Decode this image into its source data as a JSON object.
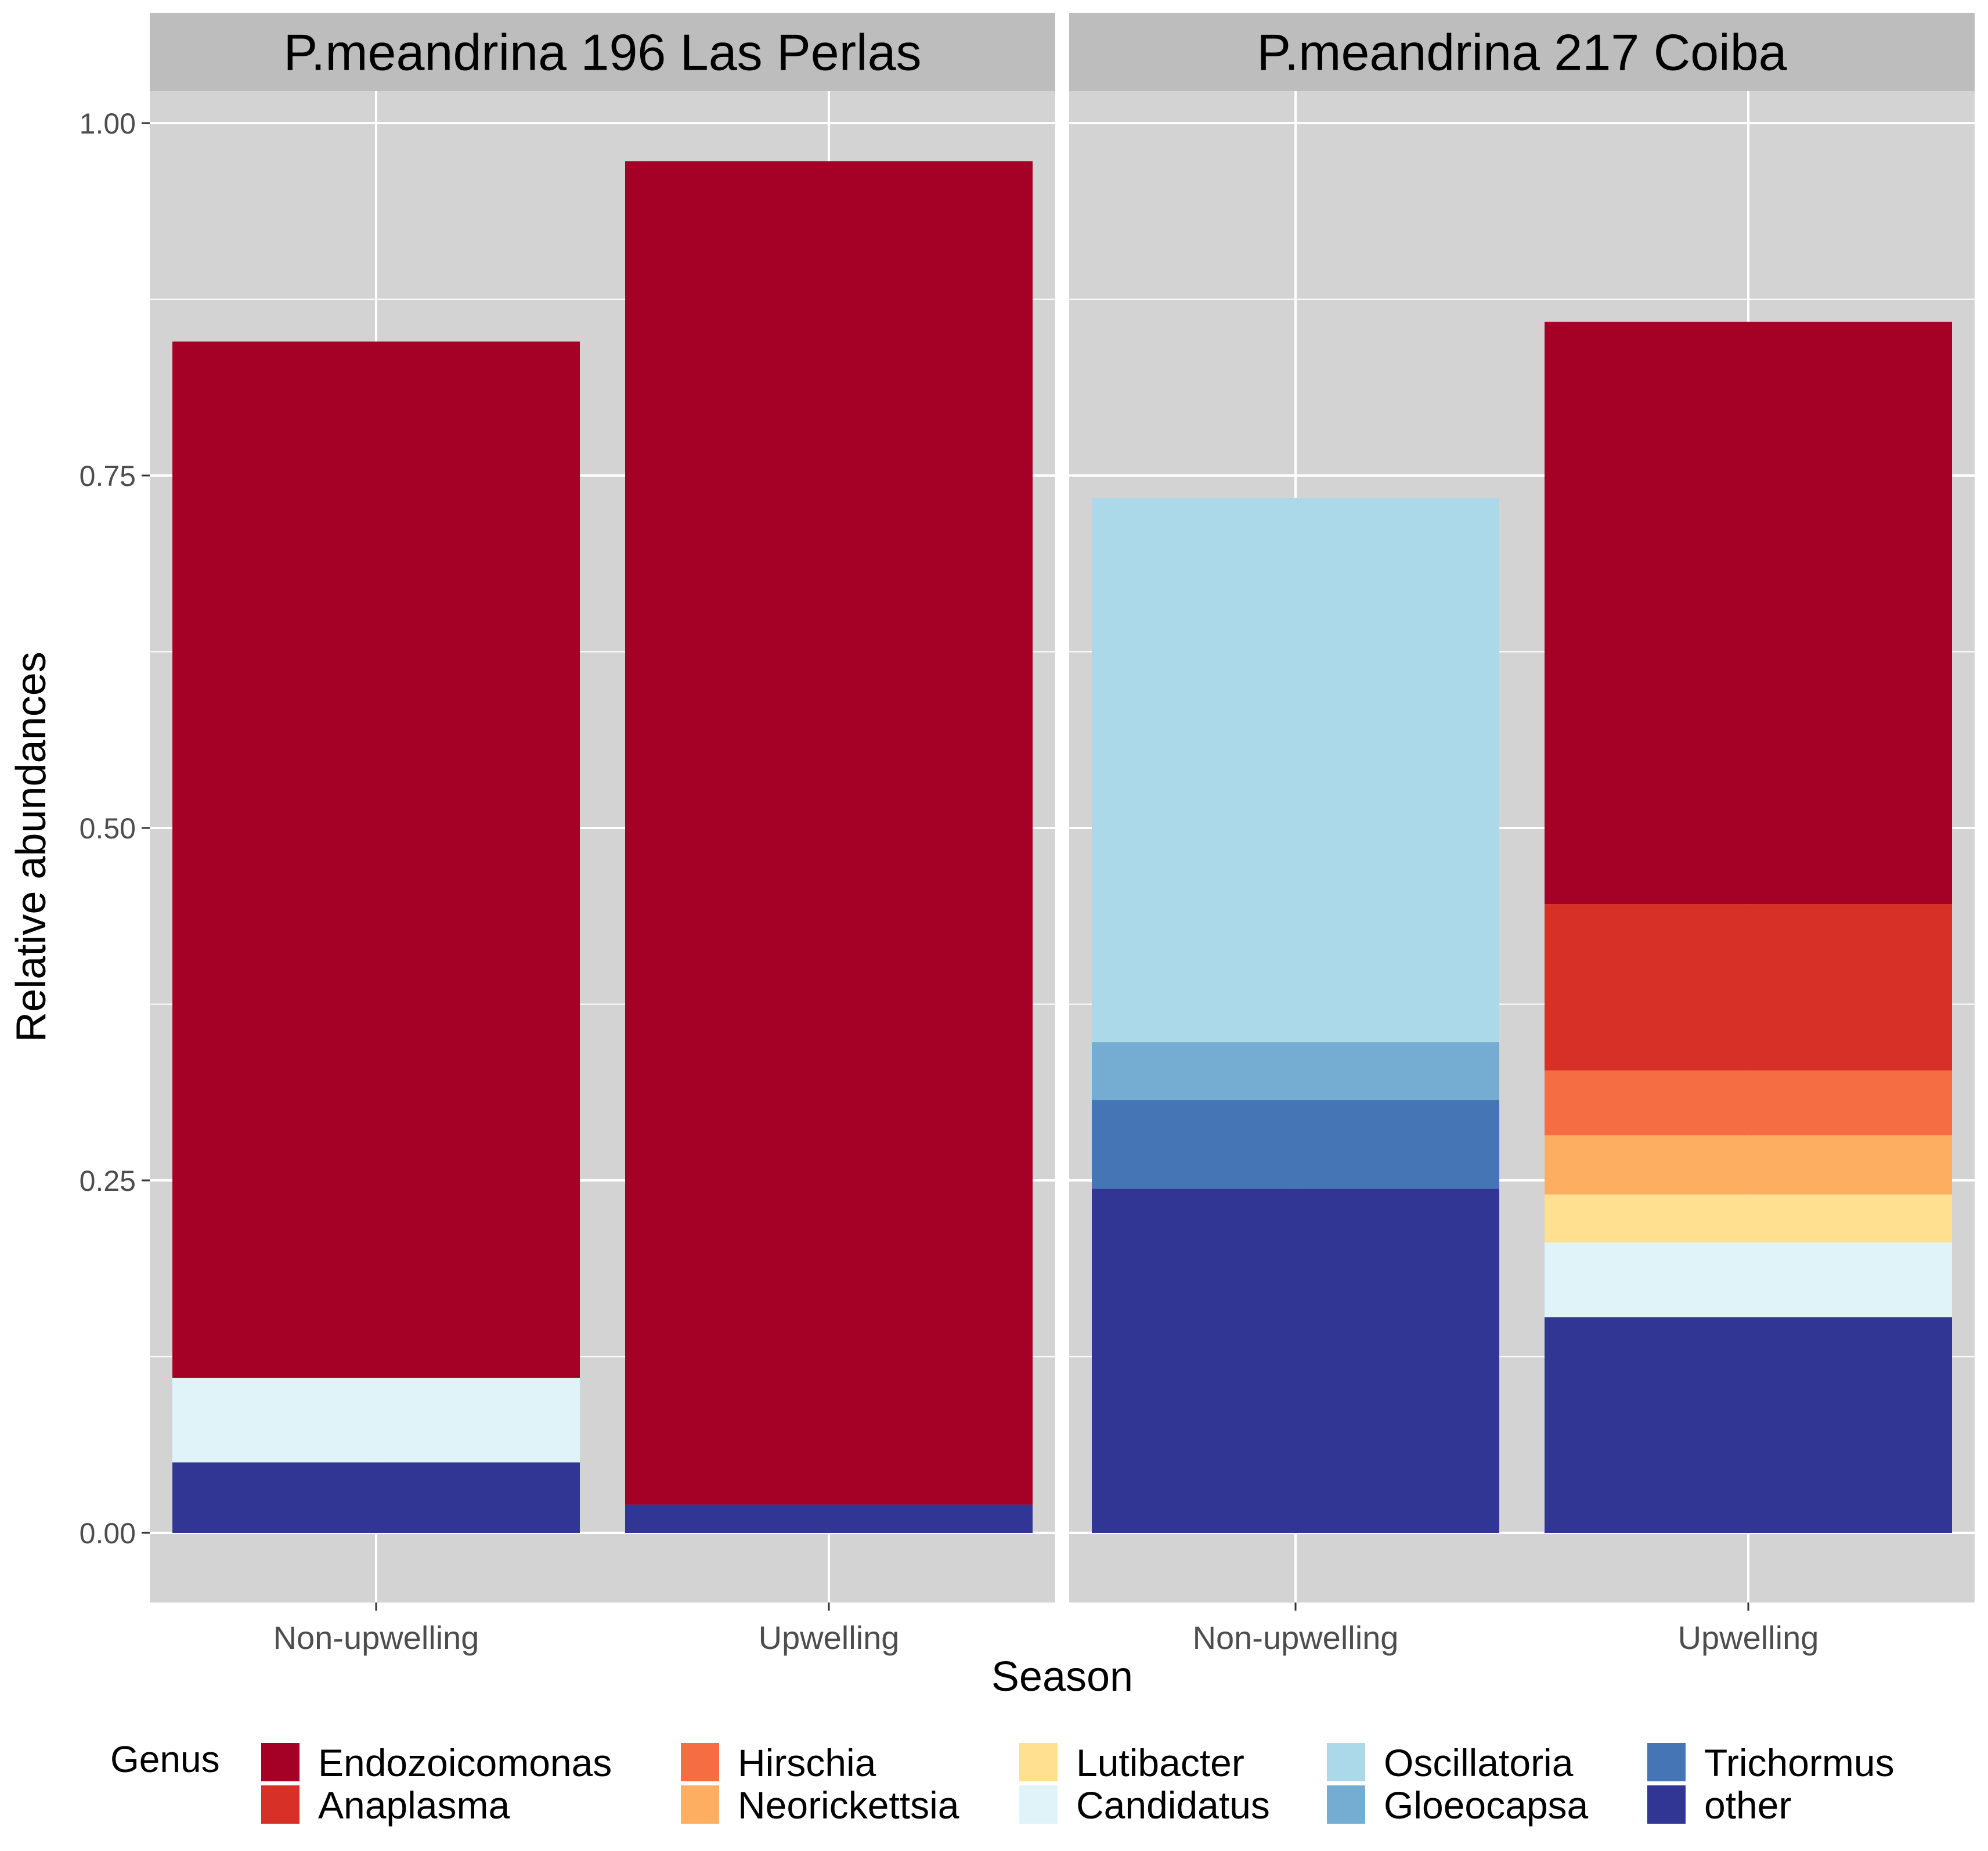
{
  "chart_data": {
    "type": "bar",
    "stacked": true,
    "xlabel": "Season",
    "ylabel": "Relative abundances",
    "ylim": [
      -0.095,
      1.04
    ],
    "yticks": [
      "0.00",
      "0.25",
      "0.50",
      "0.75",
      "1.00"
    ],
    "ytick_values": [
      0,
      0.25,
      0.5,
      0.75,
      1.0
    ],
    "grid": true,
    "background": "#d3d3d3",
    "legend": {
      "title": "Genus",
      "position": "bottom",
      "entries": [
        {
          "label": "Endozoicomonas",
          "color": "#a50026"
        },
        {
          "label": "Anaplasma",
          "color": "#d73027"
        },
        {
          "label": "Hirschia",
          "color": "#f46d43"
        },
        {
          "label": "Neorickettsia",
          "color": "#fdae61"
        },
        {
          "label": "Lutibacter",
          "color": "#fee090"
        },
        {
          "label": "Candidatus",
          "color": "#e0f3f8"
        },
        {
          "label": "Oscillatoria",
          "color": "#abd9e9"
        },
        {
          "label": "Gloeocapsa",
          "color": "#74add1"
        },
        {
          "label": "Trichormus",
          "color": "#4575b4"
        },
        {
          "label": "other",
          "color": "#313695"
        }
      ]
    },
    "panels": [
      {
        "title": "P.meandrina 196 Las Perlas",
        "categories": [
          "Non-upwelling",
          "Upwelling"
        ],
        "series": [
          {
            "name": "other",
            "values": [
              0.05,
              0.02
            ]
          },
          {
            "name": "Trichormus",
            "values": [
              0,
              0
            ]
          },
          {
            "name": "Gloeocapsa",
            "values": [
              0,
              0
            ]
          },
          {
            "name": "Oscillatoria",
            "values": [
              0,
              0
            ]
          },
          {
            "name": "Candidatus",
            "values": [
              0.06,
              0
            ]
          },
          {
            "name": "Lutibacter",
            "values": [
              0,
              0
            ]
          },
          {
            "name": "Neorickettsia",
            "values": [
              0,
              0
            ]
          },
          {
            "name": "Hirschia",
            "values": [
              0,
              0
            ]
          },
          {
            "name": "Anaplasma",
            "values": [
              0,
              0
            ]
          },
          {
            "name": "Endozoicomonas",
            "values": [
              0.735,
              0.953
            ]
          }
        ]
      },
      {
        "title": "P.meandrina 217 Coiba",
        "categories": [
          "Non-upwelling",
          "Upwelling"
        ],
        "series": [
          {
            "name": "other",
            "values": [
              0.244,
              0.153
            ]
          },
          {
            "name": "Trichormus",
            "values": [
              0.063,
              0
            ]
          },
          {
            "name": "Gloeocapsa",
            "values": [
              0.041,
              0
            ]
          },
          {
            "name": "Oscillatoria",
            "values": [
              0.386,
              0
            ]
          },
          {
            "name": "Candidatus",
            "values": [
              0,
              0.053
            ]
          },
          {
            "name": "Lutibacter",
            "values": [
              0,
              0.034
            ]
          },
          {
            "name": "Neorickettsia",
            "values": [
              0,
              0.042
            ]
          },
          {
            "name": "Hirschia",
            "values": [
              0,
              0.046
            ]
          },
          {
            "name": "Anaplasma",
            "values": [
              0,
              0.118
            ]
          },
          {
            "name": "Endozoicomonas",
            "values": [
              0,
              0.413
            ]
          }
        ]
      }
    ]
  }
}
